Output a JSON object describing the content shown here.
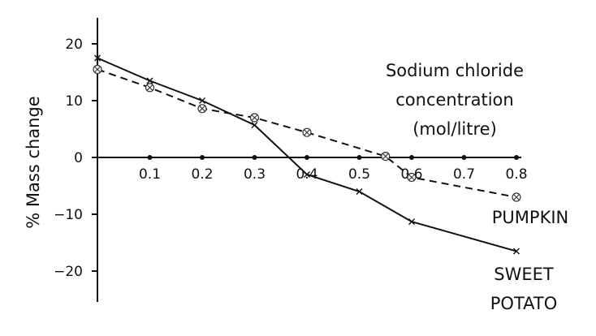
{
  "chart_data": {
    "type": "line",
    "xlabel": [
      "Sodium chloride",
      "concentration",
      "(mol/litre)"
    ],
    "ylabel": "% Mass change",
    "xlim": [
      0,
      0.8
    ],
    "ylim": [
      -25,
      25
    ],
    "x_ticks": [
      0.1,
      0.2,
      0.3,
      0.4,
      0.5,
      0.6,
      0.7,
      0.8
    ],
    "x_tick_labels": [
      "0.1",
      "0.2",
      "0.3",
      "0.4",
      "0.5",
      "0.6",
      "0.7",
      "0.8"
    ],
    "y_ticks": [
      20,
      10,
      0,
      -10,
      -20
    ],
    "y_tick_labels": [
      "20",
      "10",
      "0",
      "−10",
      "−20"
    ],
    "grid": false,
    "series": [
      {
        "name": "PUMPKIN",
        "label_lines": [
          "PUMPKIN"
        ],
        "line_style": "dashed",
        "marker": "circle-cross",
        "color": "#111111",
        "x": [
          0,
          0.1,
          0.2,
          0.3,
          0.4,
          0.55,
          0.6,
          0.8
        ],
        "y": [
          15.5,
          12.3,
          8.6,
          7.0,
          4.4,
          0.2,
          -3.5,
          -7.0
        ]
      },
      {
        "name": "SWEET POTATO",
        "label_lines": [
          "SWEET",
          "POTATO"
        ],
        "line_style": "solid",
        "marker": "x",
        "color": "#111111",
        "x": [
          0,
          0.1,
          0.2,
          0.3,
          0.4,
          0.5,
          0.6,
          0.8
        ],
        "y": [
          17.5,
          13.5,
          10.0,
          5.7,
          -3.0,
          -6.0,
          -11.3,
          -16.5
        ]
      }
    ]
  }
}
